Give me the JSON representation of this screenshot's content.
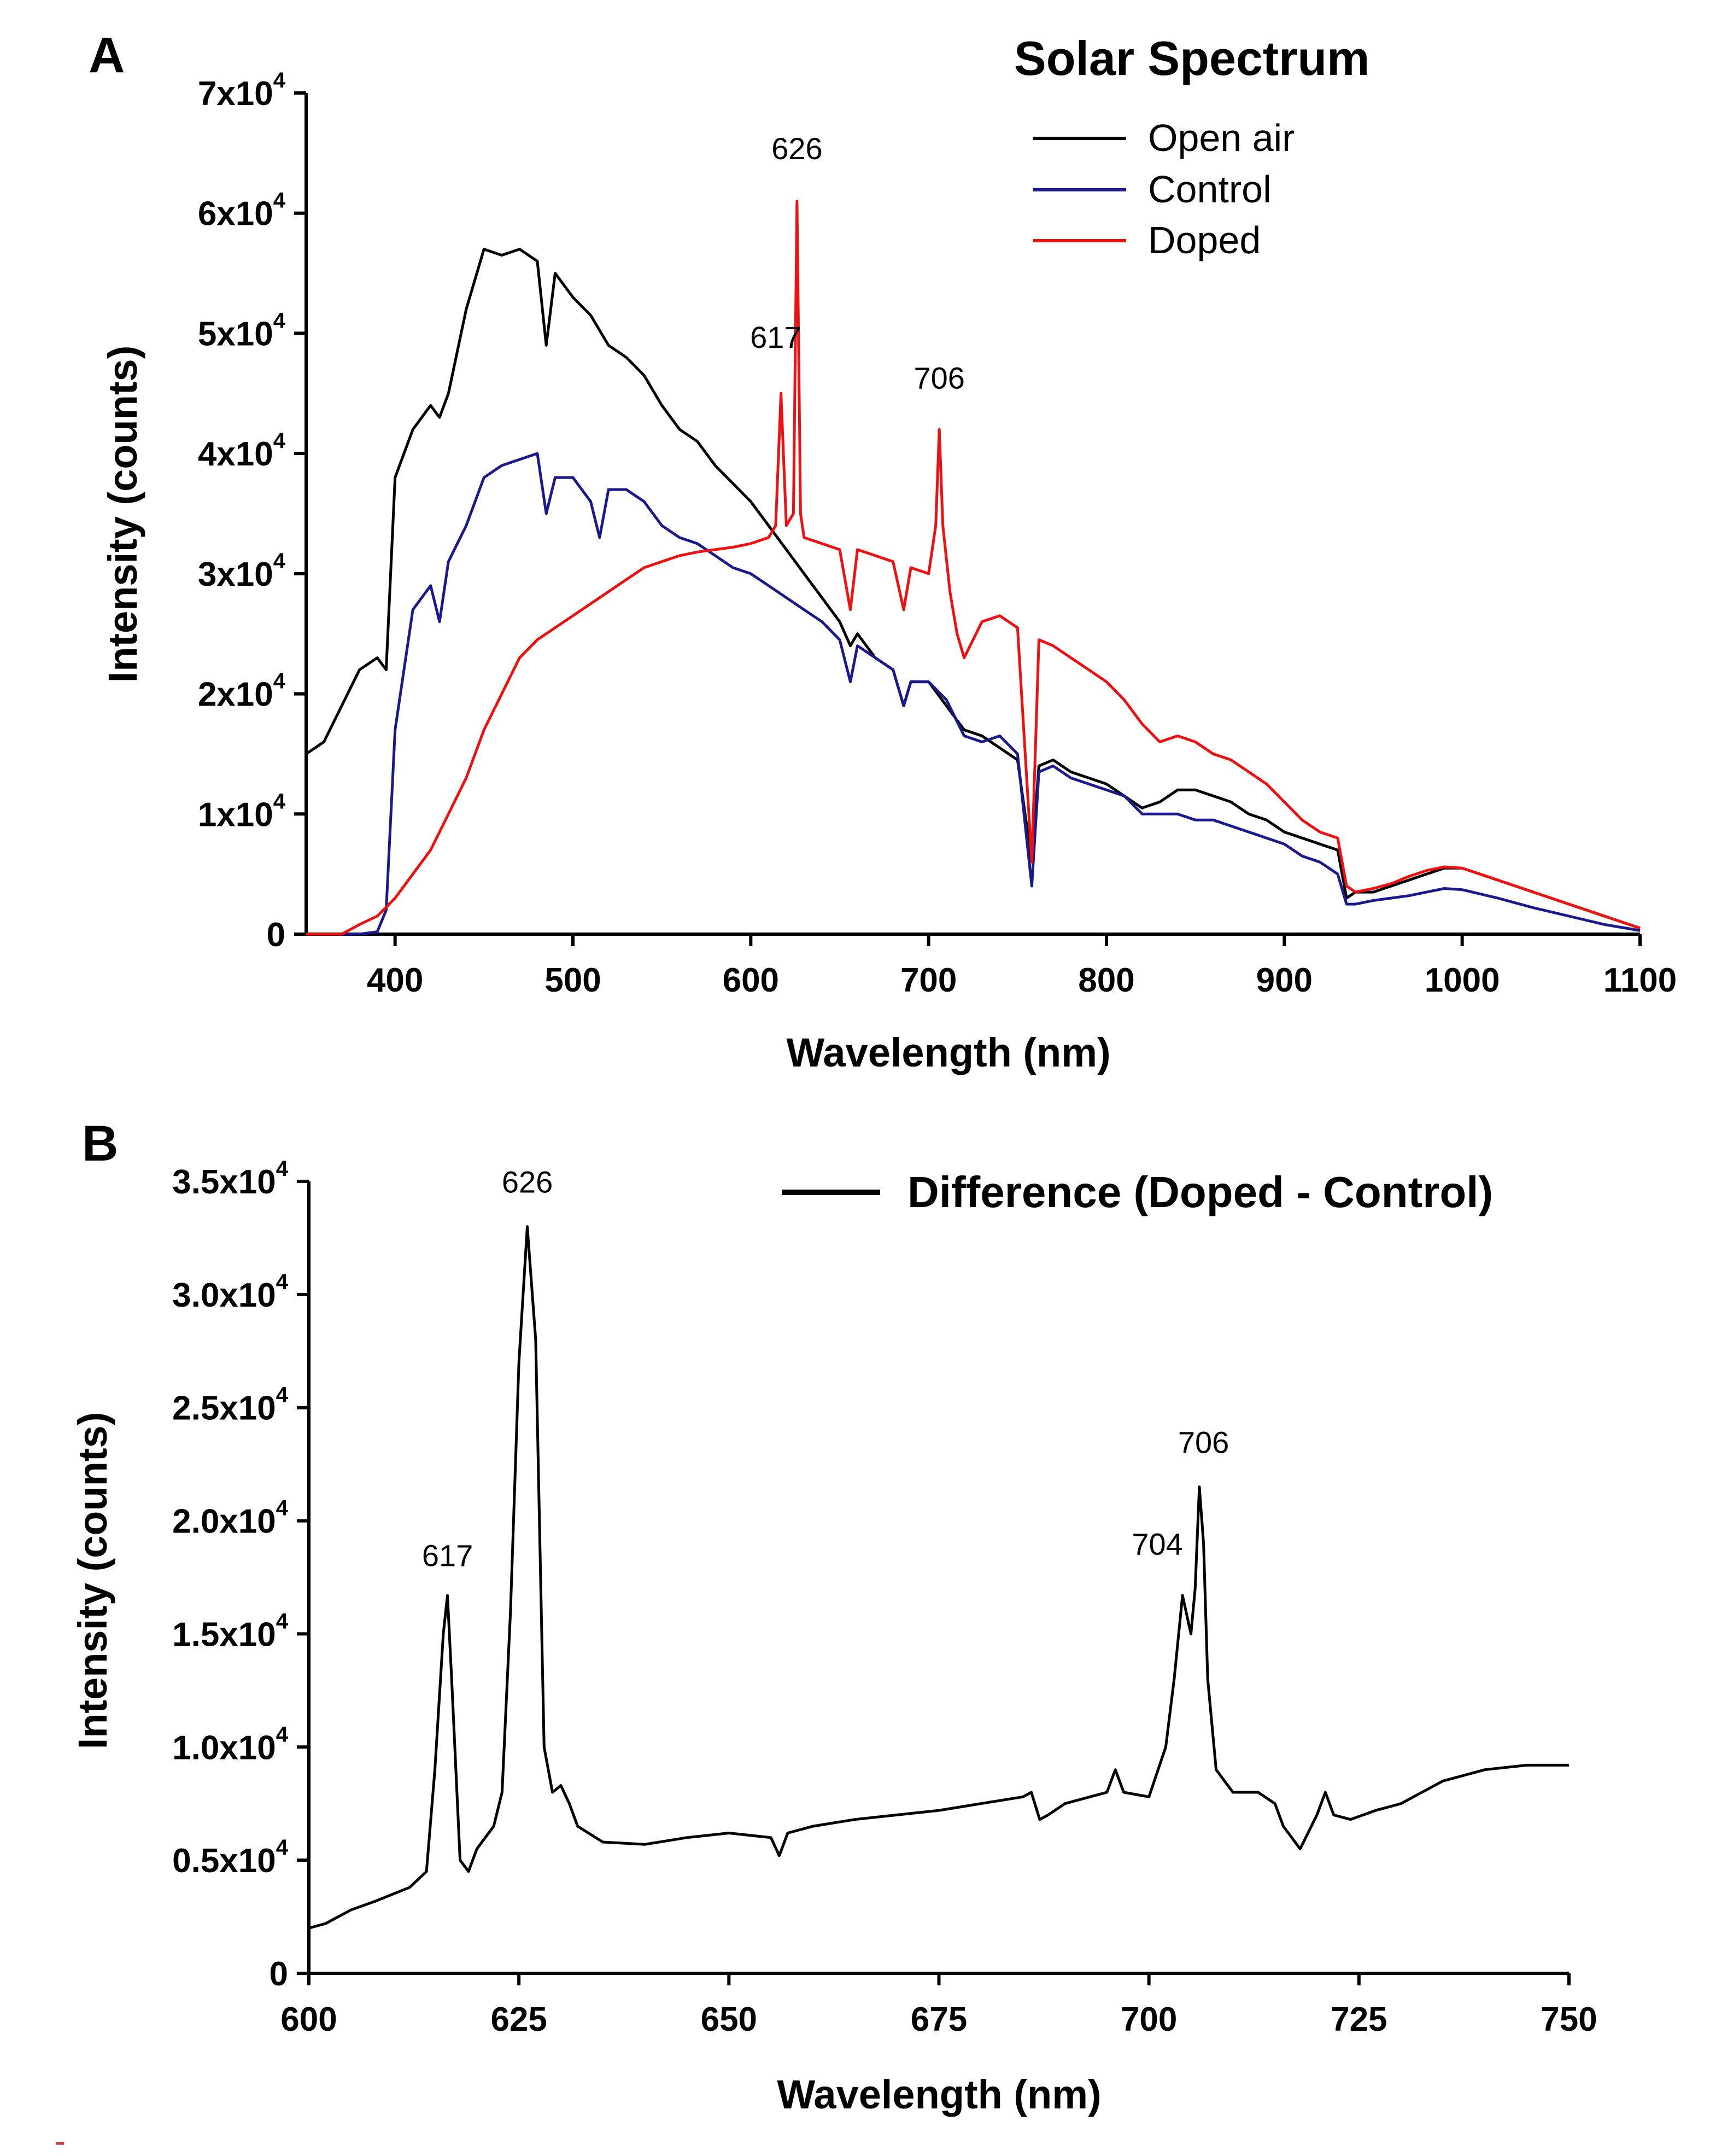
{
  "chart_data": [
    {
      "panel": "A",
      "type": "line",
      "title": "Solar Spectrum",
      "xlabel": "Wavelength (nm)",
      "ylabel": "Intensity (counts)",
      "xlim": [
        350,
        1100
      ],
      "ylim": [
        0,
        70000
      ],
      "xticks": [
        400,
        500,
        600,
        700,
        800,
        900,
        1000,
        1100
      ],
      "yticks": [
        {
          "value": 0,
          "mantissa": "0",
          "exp": ""
        },
        {
          "value": 10000,
          "mantissa": "1x10",
          "exp": "4"
        },
        {
          "value": 20000,
          "mantissa": "2x10",
          "exp": "4"
        },
        {
          "value": 30000,
          "mantissa": "3x10",
          "exp": "4"
        },
        {
          "value": 40000,
          "mantissa": "4x10",
          "exp": "4"
        },
        {
          "value": 50000,
          "mantissa": "5x10",
          "exp": "4"
        },
        {
          "value": 60000,
          "mantissa": "6x10",
          "exp": "4"
        },
        {
          "value": 70000,
          "mantissa": "7x10",
          "exp": "4"
        }
      ],
      "legend": "top-right",
      "grid": false,
      "annotations": [
        {
          "text": "626",
          "x": 626,
          "y": 64500
        },
        {
          "text": "617",
          "x": 614,
          "y": 48800
        },
        {
          "text": "706",
          "x": 706,
          "y": 45400
        }
      ],
      "series": [
        {
          "name": "Open air",
          "color": "#000000",
          "x": [
            350,
            360,
            370,
            380,
            390,
            395,
            400,
            410,
            420,
            425,
            430,
            440,
            450,
            460,
            470,
            480,
            485,
            490,
            500,
            510,
            520,
            530,
            540,
            550,
            560,
            570,
            580,
            590,
            600,
            610,
            620,
            630,
            640,
            650,
            656,
            660,
            670,
            680,
            686,
            690,
            700,
            710,
            720,
            730,
            740,
            750,
            758,
            762,
            770,
            780,
            790,
            800,
            810,
            820,
            830,
            840,
            850,
            860,
            870,
            880,
            890,
            900,
            910,
            920,
            930,
            935,
            940,
            950,
            960,
            970,
            980,
            990,
            1000,
            1020,
            1040,
            1060,
            1080,
            1100
          ],
          "y": [
            15000,
            16000,
            19000,
            22000,
            23000,
            22000,
            38000,
            42000,
            44000,
            43000,
            45000,
            52000,
            57000,
            56500,
            57000,
            56000,
            49000,
            55000,
            53000,
            51500,
            49000,
            48000,
            46500,
            44000,
            42000,
            41000,
            39000,
            37500,
            36000,
            34000,
            32000,
            30000,
            28000,
            26000,
            24000,
            25000,
            23000,
            22000,
            19000,
            21000,
            21000,
            19000,
            17000,
            16500,
            15500,
            14500,
            6000,
            14000,
            14500,
            13500,
            13000,
            12500,
            11500,
            10500,
            11000,
            12000,
            12000,
            11500,
            11000,
            10000,
            9500,
            8500,
            8000,
            7500,
            7000,
            3000,
            3500,
            3500,
            4000,
            4500,
            5000,
            5500,
            5500,
            4500,
            3500,
            2500,
            1500,
            500
          ]
        },
        {
          "name": "Control",
          "color": "#1a1a8c",
          "x": [
            350,
            380,
            390,
            395,
            400,
            410,
            420,
            425,
            430,
            440,
            450,
            460,
            470,
            480,
            485,
            490,
            500,
            510,
            515,
            520,
            530,
            540,
            550,
            560,
            570,
            580,
            590,
            600,
            610,
            620,
            630,
            640,
            650,
            656,
            660,
            670,
            680,
            686,
            690,
            700,
            710,
            720,
            730,
            740,
            750,
            758,
            762,
            770,
            780,
            790,
            800,
            810,
            820,
            830,
            840,
            850,
            860,
            870,
            880,
            890,
            900,
            910,
            920,
            930,
            935,
            940,
            950,
            960,
            970,
            980,
            990,
            1000,
            1020,
            1040,
            1060,
            1080,
            1100
          ],
          "y": [
            0,
            0,
            200,
            2000,
            17000,
            27000,
            29000,
            26000,
            31000,
            34000,
            38000,
            39000,
            39500,
            40000,
            35000,
            38000,
            38000,
            36000,
            33000,
            37000,
            37000,
            36000,
            34000,
            33000,
            32500,
            31500,
            30500,
            30000,
            29000,
            28000,
            27000,
            26000,
            24500,
            21000,
            24000,
            23000,
            22000,
            19000,
            21000,
            21000,
            19500,
            16500,
            16000,
            16500,
            15000,
            4000,
            13500,
            14000,
            13000,
            12500,
            12000,
            11500,
            10000,
            10000,
            10000,
            9500,
            9500,
            9000,
            8500,
            8000,
            7500,
            6500,
            6000,
            5000,
            2500,
            2500,
            2800,
            3000,
            3200,
            3500,
            3800,
            3700,
            3000,
            2200,
            1500,
            800,
            300
          ]
        },
        {
          "name": "Doped",
          "color": "#ee1111",
          "x": [
            350,
            370,
            380,
            390,
            400,
            410,
            420,
            430,
            440,
            450,
            460,
            470,
            480,
            490,
            500,
            510,
            520,
            530,
            540,
            550,
            560,
            570,
            580,
            590,
            600,
            610,
            614,
            617,
            620,
            624,
            626,
            628,
            630,
            640,
            650,
            656,
            660,
            670,
            680,
            686,
            690,
            700,
            704,
            706,
            708,
            712,
            716,
            720,
            730,
            740,
            750,
            758,
            762,
            770,
            780,
            790,
            800,
            810,
            820,
            830,
            840,
            850,
            860,
            870,
            880,
            890,
            900,
            910,
            920,
            930,
            935,
            940,
            950,
            960,
            970,
            980,
            990,
            1000,
            1020,
            1040,
            1060,
            1080,
            1100
          ],
          "y": [
            0,
            0,
            800,
            1500,
            3000,
            5000,
            7000,
            10000,
            13000,
            17000,
            20000,
            23000,
            24500,
            25500,
            26500,
            27500,
            28500,
            29500,
            30500,
            31000,
            31500,
            31800,
            32000,
            32200,
            32500,
            33000,
            34000,
            45000,
            34000,
            35000,
            61000,
            35000,
            33000,
            32500,
            32000,
            27000,
            32000,
            31500,
            31000,
            27000,
            30500,
            30000,
            34000,
            42000,
            34000,
            28500,
            25000,
            23000,
            26000,
            26500,
            25500,
            6000,
            24500,
            24000,
            23000,
            22000,
            21000,
            19500,
            17500,
            16000,
            16500,
            16000,
            15000,
            14500,
            13500,
            12500,
            11000,
            9500,
            8500,
            8000,
            4000,
            3500,
            3800,
            4200,
            4800,
            5300,
            5600,
            5500,
            4500,
            3500,
            2500,
            1500,
            500
          ]
        }
      ]
    },
    {
      "panel": "B",
      "type": "line",
      "title": "",
      "xlabel": "Wavelength (nm)",
      "ylabel": "Intensity (counts)",
      "xlim": [
        600,
        750
      ],
      "ylim": [
        0,
        35000
      ],
      "xticks": [
        600,
        625,
        650,
        675,
        700,
        725,
        750
      ],
      "yticks": [
        {
          "value": 0,
          "mantissa": "0",
          "exp": ""
        },
        {
          "value": 5000,
          "mantissa": "0.5x10",
          "exp": "4"
        },
        {
          "value": 10000,
          "mantissa": "1.0x10",
          "exp": "4"
        },
        {
          "value": 15000,
          "mantissa": "1.5x10",
          "exp": "4"
        },
        {
          "value": 20000,
          "mantissa": "2.0x10",
          "exp": "4"
        },
        {
          "value": 25000,
          "mantissa": "2.5x10",
          "exp": "4"
        },
        {
          "value": 30000,
          "mantissa": "3.0x10",
          "exp": "4"
        },
        {
          "value": 35000,
          "mantissa": "3.5x10",
          "exp": "4"
        }
      ],
      "legend": "top-right",
      "grid": false,
      "annotations": [
        {
          "text": "626",
          "x": 626,
          "y": 34500
        },
        {
          "text": "617",
          "x": 616.5,
          "y": 18000
        },
        {
          "text": "706",
          "x": 706.5,
          "y": 23000
        },
        {
          "text": "704",
          "x": 701,
          "y": 18500
        }
      ],
      "series": [
        {
          "name": "Difference (Doped - Control)",
          "color": "#000000",
          "x": [
            600,
            602,
            605,
            608,
            610,
            612,
            614,
            615,
            616,
            616.5,
            617,
            618,
            619,
            620,
            621,
            622,
            623,
            624,
            625,
            626,
            627,
            628,
            629,
            630,
            631,
            632,
            635,
            640,
            645,
            650,
            655,
            656,
            657,
            660,
            665,
            670,
            675,
            680,
            685,
            686,
            687,
            688,
            690,
            695,
            696,
            697,
            700,
            702,
            703,
            704,
            705,
            705.5,
            706,
            706.5,
            707,
            708,
            710,
            713,
            715,
            716,
            718,
            720,
            721,
            722,
            724,
            727,
            730,
            735,
            740,
            745,
            750
          ],
          "y": [
            2000,
            2200,
            2800,
            3200,
            3500,
            3800,
            4500,
            9000,
            15000,
            16700,
            13000,
            5000,
            4500,
            5500,
            6000,
            6500,
            8000,
            16000,
            27000,
            33000,
            28000,
            10000,
            8000,
            8300,
            7500,
            6500,
            5800,
            5700,
            6000,
            6200,
            6000,
            5200,
            6200,
            6500,
            6800,
            7000,
            7200,
            7500,
            7800,
            8000,
            6800,
            7000,
            7500,
            8000,
            9000,
            8000,
            7800,
            10000,
            13000,
            16700,
            15000,
            17000,
            21500,
            19000,
            13000,
            9000,
            8000,
            8000,
            7500,
            6500,
            5500,
            7000,
            8000,
            7000,
            6800,
            7200,
            7500,
            8500,
            9000,
            9200,
            9200
          ]
        }
      ]
    }
  ],
  "footer_mark": "-"
}
